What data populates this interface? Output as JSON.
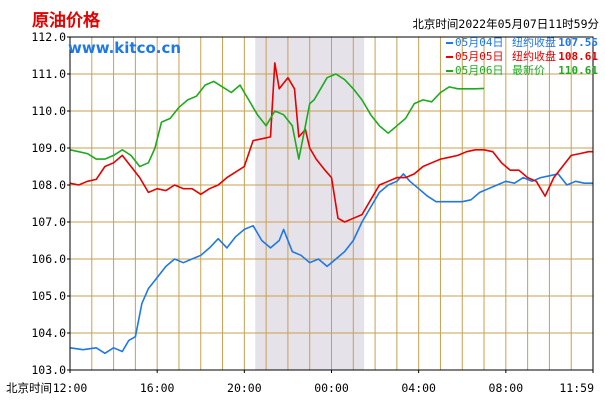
{
  "header": {
    "title": "原油价格",
    "website": "www.kitco.cn",
    "timestamp": "北京时间2022年05月07日11时59分"
  },
  "legend": [
    {
      "date": "05月04日",
      "label": "纽约收盘",
      "value": "107.55",
      "color": "#1e78e6"
    },
    {
      "date": "05月05日",
      "label": "纽约收盘",
      "value": "108.61",
      "color": "#e60000"
    },
    {
      "date": "05月06日",
      "label": "最新价",
      "value": "110.61",
      "color": "#1eaa1e"
    }
  ],
  "x_axis_prefix": "北京时间",
  "colors": {
    "grid": "#c8a050",
    "axis": "#000000",
    "shade": "#e6e2ea"
  },
  "chart_data": {
    "type": "line",
    "ylim": [
      103.0,
      112.0
    ],
    "y_ticks": [
      103.0,
      104.0,
      105.0,
      106.0,
      107.0,
      108.0,
      109.0,
      110.0,
      111.0,
      112.0
    ],
    "x_hours_range": [
      0,
      24
    ],
    "x_ticks": [
      {
        "label": "12:00",
        "h": 0
      },
      {
        "label": "16:00",
        "h": 4
      },
      {
        "label": "20:00",
        "h": 8
      },
      {
        "label": "00:00",
        "h": 12
      },
      {
        "label": "04:00",
        "h": 16
      },
      {
        "label": "08:00",
        "h": 20
      },
      {
        "label": "11:59",
        "h": 24
      }
    ],
    "shaded_region_hours": [
      8.5,
      13.5
    ],
    "series": [
      {
        "date": "05月04日",
        "color": "#1e78e6",
        "points": [
          [
            0,
            103.6
          ],
          [
            0.6,
            103.55
          ],
          [
            1.2,
            103.6
          ],
          [
            1.6,
            103.45
          ],
          [
            2.0,
            103.6
          ],
          [
            2.4,
            103.5
          ],
          [
            2.7,
            103.8
          ],
          [
            3.0,
            103.9
          ],
          [
            3.3,
            104.8
          ],
          [
            3.6,
            105.2
          ],
          [
            4.0,
            105.5
          ],
          [
            4.4,
            105.8
          ],
          [
            4.8,
            106.0
          ],
          [
            5.2,
            105.9
          ],
          [
            5.6,
            106.0
          ],
          [
            6.0,
            106.1
          ],
          [
            6.4,
            106.3
          ],
          [
            6.8,
            106.55
          ],
          [
            7.2,
            106.3
          ],
          [
            7.6,
            106.6
          ],
          [
            8.0,
            106.8
          ],
          [
            8.4,
            106.9
          ],
          [
            8.8,
            106.5
          ],
          [
            9.2,
            106.3
          ],
          [
            9.6,
            106.5
          ],
          [
            9.8,
            106.8
          ],
          [
            10.2,
            106.2
          ],
          [
            10.6,
            106.1
          ],
          [
            11.0,
            105.9
          ],
          [
            11.4,
            106.0
          ],
          [
            11.8,
            105.8
          ],
          [
            12.2,
            106.0
          ],
          [
            12.6,
            106.2
          ],
          [
            13.0,
            106.5
          ],
          [
            13.4,
            107.0
          ],
          [
            13.8,
            107.4
          ],
          [
            14.2,
            107.8
          ],
          [
            14.6,
            108.0
          ],
          [
            15.0,
            108.1
          ],
          [
            15.3,
            108.3
          ],
          [
            15.6,
            108.1
          ],
          [
            16.0,
            107.9
          ],
          [
            16.4,
            107.7
          ],
          [
            16.8,
            107.55
          ],
          [
            17.2,
            107.55
          ],
          [
            17.6,
            107.55
          ],
          [
            18.0,
            107.55
          ],
          [
            18.4,
            107.6
          ],
          [
            18.8,
            107.8
          ],
          [
            19.2,
            107.9
          ],
          [
            19.6,
            108.0
          ],
          [
            20.0,
            108.1
          ],
          [
            20.4,
            108.05
          ],
          [
            20.8,
            108.2
          ],
          [
            21.2,
            108.1
          ],
          [
            21.6,
            108.2
          ],
          [
            22.0,
            108.25
          ],
          [
            22.4,
            108.3
          ],
          [
            22.8,
            108.0
          ],
          [
            23.2,
            108.1
          ],
          [
            23.6,
            108.05
          ],
          [
            24.0,
            108.05
          ]
        ]
      },
      {
        "date": "05月05日",
        "color": "#e60000",
        "points": [
          [
            0,
            108.05
          ],
          [
            0.4,
            108.0
          ],
          [
            0.8,
            108.1
          ],
          [
            1.2,
            108.15
          ],
          [
            1.6,
            108.5
          ],
          [
            2.0,
            108.6
          ],
          [
            2.4,
            108.8
          ],
          [
            2.8,
            108.5
          ],
          [
            3.2,
            108.2
          ],
          [
            3.6,
            107.8
          ],
          [
            4.0,
            107.9
          ],
          [
            4.4,
            107.85
          ],
          [
            4.8,
            108.0
          ],
          [
            5.2,
            107.9
          ],
          [
            5.6,
            107.9
          ],
          [
            6.0,
            107.75
          ],
          [
            6.4,
            107.9
          ],
          [
            6.8,
            108.0
          ],
          [
            7.2,
            108.2
          ],
          [
            7.6,
            108.35
          ],
          [
            8.0,
            108.5
          ],
          [
            8.4,
            109.2
          ],
          [
            8.8,
            109.25
          ],
          [
            9.2,
            109.3
          ],
          [
            9.4,
            111.3
          ],
          [
            9.6,
            110.6
          ],
          [
            10.0,
            110.9
          ],
          [
            10.3,
            110.6
          ],
          [
            10.5,
            109.3
          ],
          [
            10.8,
            109.5
          ],
          [
            11.0,
            109.0
          ],
          [
            11.3,
            108.7
          ],
          [
            11.7,
            108.4
          ],
          [
            12.0,
            108.2
          ],
          [
            12.3,
            107.1
          ],
          [
            12.6,
            107.0
          ],
          [
            13.0,
            107.1
          ],
          [
            13.4,
            107.2
          ],
          [
            13.8,
            107.6
          ],
          [
            14.2,
            108.0
          ],
          [
            14.6,
            108.1
          ],
          [
            15.0,
            108.2
          ],
          [
            15.4,
            108.2
          ],
          [
            15.8,
            108.3
          ],
          [
            16.2,
            108.5
          ],
          [
            16.6,
            108.6
          ],
          [
            17.0,
            108.7
          ],
          [
            17.4,
            108.75
          ],
          [
            17.8,
            108.8
          ],
          [
            18.2,
            108.9
          ],
          [
            18.6,
            108.95
          ],
          [
            19.0,
            108.95
          ],
          [
            19.4,
            108.9
          ],
          [
            19.8,
            108.6
          ],
          [
            20.2,
            108.4
          ],
          [
            20.6,
            108.4
          ],
          [
            21.0,
            108.2
          ],
          [
            21.4,
            108.1
          ],
          [
            21.8,
            107.7
          ],
          [
            22.2,
            108.2
          ],
          [
            22.6,
            108.5
          ],
          [
            23.0,
            108.8
          ],
          [
            23.4,
            108.85
          ],
          [
            23.8,
            108.9
          ],
          [
            24.0,
            108.9
          ]
        ]
      },
      {
        "date": "05月06日",
        "color": "#1eaa1e",
        "points": [
          [
            0,
            108.95
          ],
          [
            0.4,
            108.9
          ],
          [
            0.8,
            108.85
          ],
          [
            1.2,
            108.7
          ],
          [
            1.6,
            108.7
          ],
          [
            2.0,
            108.8
          ],
          [
            2.4,
            108.95
          ],
          [
            2.8,
            108.8
          ],
          [
            3.2,
            108.5
          ],
          [
            3.6,
            108.6
          ],
          [
            3.9,
            109.0
          ],
          [
            4.2,
            109.7
          ],
          [
            4.6,
            109.8
          ],
          [
            5.0,
            110.1
          ],
          [
            5.4,
            110.3
          ],
          [
            5.8,
            110.4
          ],
          [
            6.2,
            110.7
          ],
          [
            6.6,
            110.8
          ],
          [
            7.0,
            110.65
          ],
          [
            7.4,
            110.5
          ],
          [
            7.8,
            110.7
          ],
          [
            8.2,
            110.3
          ],
          [
            8.6,
            109.9
          ],
          [
            9.0,
            109.6
          ],
          [
            9.4,
            110.0
          ],
          [
            9.8,
            109.9
          ],
          [
            10.2,
            109.6
          ],
          [
            10.5,
            108.7
          ],
          [
            10.8,
            109.6
          ],
          [
            11.0,
            110.2
          ],
          [
            11.2,
            110.3
          ],
          [
            11.5,
            110.6
          ],
          [
            11.8,
            110.9
          ],
          [
            12.2,
            111.0
          ],
          [
            12.6,
            110.85
          ],
          [
            13.0,
            110.6
          ],
          [
            13.4,
            110.3
          ],
          [
            13.8,
            109.9
          ],
          [
            14.2,
            109.6
          ],
          [
            14.6,
            109.4
          ],
          [
            15.0,
            109.6
          ],
          [
            15.4,
            109.8
          ],
          [
            15.8,
            110.2
          ],
          [
            16.2,
            110.3
          ],
          [
            16.6,
            110.25
          ],
          [
            17.0,
            110.5
          ],
          [
            17.4,
            110.65
          ],
          [
            17.8,
            110.6
          ],
          [
            18.2,
            110.6
          ],
          [
            18.6,
            110.6
          ],
          [
            19.0,
            110.61
          ]
        ]
      }
    ]
  }
}
